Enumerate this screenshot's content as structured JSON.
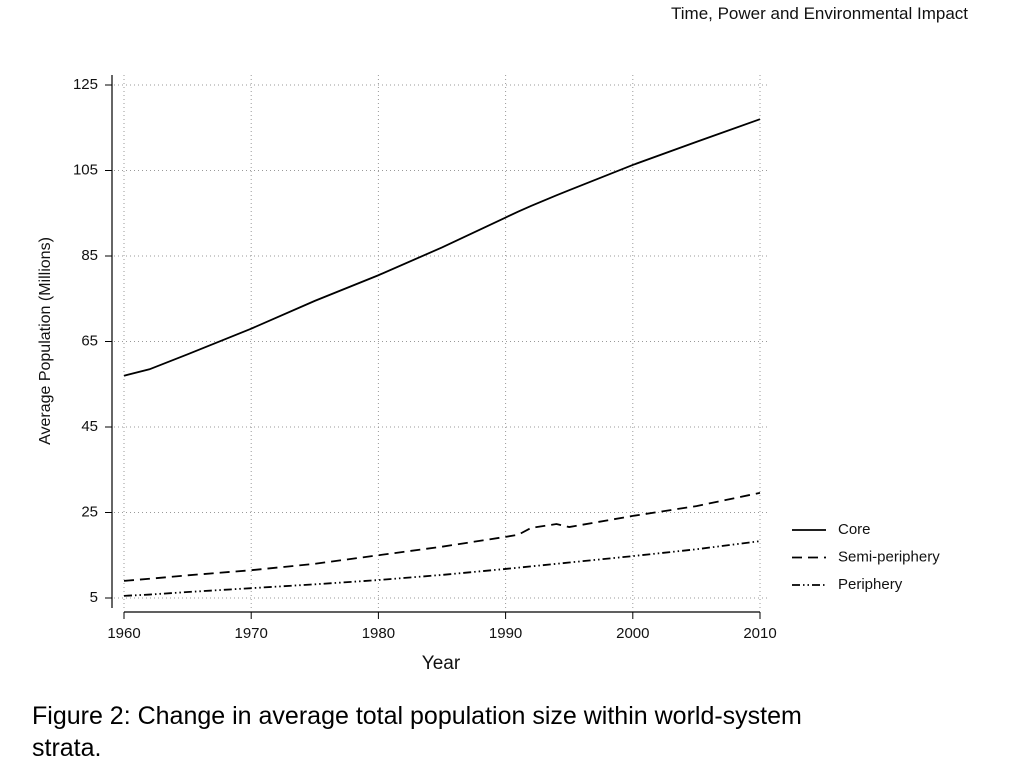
{
  "page": {
    "running_header": "Time, Power and Environmental Impact",
    "caption": "Figure 2: Change in average total population size within world-system strata."
  },
  "chart_data": {
    "type": "line",
    "x_label": "Year",
    "y_label": "Average Population (Millions)",
    "x": [
      1960,
      1962,
      1965,
      1970,
      1975,
      1980,
      1985,
      1990,
      1991,
      1992,
      1994,
      1995,
      2000,
      2005,
      2010
    ],
    "series": [
      {
        "name": "Core",
        "color": "#000000",
        "dash": "solid",
        "values": [
          57,
          58.5,
          62,
          68,
          74.5,
          80.5,
          87,
          94,
          95.4,
          96.7,
          99.2,
          100.4,
          106.3,
          111.7,
          117
        ]
      },
      {
        "name": "Semi-periphery",
        "color": "#000000",
        "dash": "dashed",
        "values": [
          9,
          9.5,
          10.3,
          11.5,
          13,
          15,
          17,
          19.3,
          19.8,
          21.4,
          22.3,
          21.6,
          24.2,
          26.5,
          29.6
        ]
      },
      {
        "name": "Periphery",
        "color": "#000000",
        "dash": "dashdotdot",
        "values": [
          5.5,
          5.8,
          6.4,
          7.3,
          8.2,
          9.2,
          10.4,
          11.8,
          12.1,
          12.4,
          13,
          13.3,
          14.8,
          16.4,
          18.3
        ]
      }
    ],
    "xlim": [
      1960,
      2010
    ],
    "xticks": [
      1960,
      1970,
      1980,
      1990,
      2000,
      2010
    ],
    "ylim": [
      5,
      125
    ],
    "yticks": [
      5,
      25,
      45,
      65,
      85,
      105,
      125
    ],
    "grid": true,
    "legend": "right"
  }
}
